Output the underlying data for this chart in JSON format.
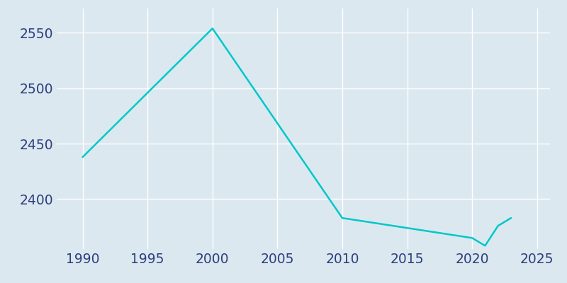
{
  "years": [
    1990,
    2000,
    2010,
    2020,
    2021,
    2022,
    2023
  ],
  "population": [
    2438,
    2554,
    2383,
    2365,
    2358,
    2376,
    2383
  ],
  "line_color": "#00C8C8",
  "axes_facecolor": "#dce8f0",
  "figure_facecolor": "#dce8f0",
  "tick_label_color": "#2d3f7c",
  "grid_color": "#ffffff",
  "xlim": [
    1988,
    2026
  ],
  "ylim": [
    2355,
    2572
  ],
  "xticks": [
    1990,
    1995,
    2000,
    2005,
    2010,
    2015,
    2020,
    2025
  ],
  "yticks": [
    2400,
    2450,
    2500,
    2550
  ],
  "line_width": 1.8,
  "tick_fontsize": 13.5
}
